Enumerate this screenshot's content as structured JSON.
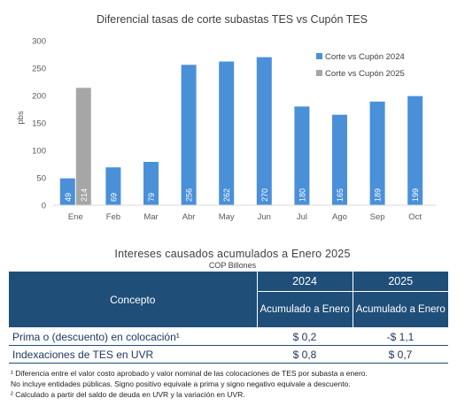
{
  "chart_data": {
    "type": "bar",
    "title": "Diferencial tasas de corte subastas TES vs Cupón TES",
    "ylabel": "pbs",
    "xlabel": "",
    "ylim": [
      0,
      300
    ],
    "yticks": [
      0,
      50,
      100,
      150,
      200,
      250,
      300
    ],
    "categories": [
      "Ene",
      "Feb",
      "Mar",
      "Abr",
      "May",
      "Jun",
      "Jul",
      "Ago",
      "Sep",
      "Oct"
    ],
    "series": [
      {
        "name": "Corte vs Cupón 2024",
        "color": "#4a90d9",
        "values": [
          49,
          69,
          79,
          256,
          262,
          270,
          180,
          165,
          189,
          199
        ]
      },
      {
        "name": "Corte vs Cupón 2025",
        "color": "#a6a6a6",
        "values": [
          214,
          null,
          null,
          null,
          null,
          null,
          null,
          null,
          null,
          null
        ]
      }
    ],
    "data_labels": true,
    "legend": "top-right",
    "grid": false
  },
  "table": {
    "title": "Intereses causados acumulados a Enero 2025",
    "subtitle": "COP Billones",
    "concept_header": "Concepto",
    "years": [
      "2024",
      "2025"
    ],
    "sub_header": "Acumulado a Enero",
    "rows": [
      {
        "label": "Prima o (descuento) en colocación¹",
        "v2024": "$ 0,2",
        "v2025": "-$ 1,1"
      },
      {
        "label": "Indexaciones de TES en UVR",
        "v2024": "$ 0,8",
        "v2025": "$ 0,7"
      }
    ]
  },
  "notes": [
    "¹ Diferencia entre el valor costo aprobado y valor nominal de las colocaciones de TES por subasta a enero.",
    "No incluye entidades públicas. Signo positivo equivale a prima y signo negativo equivale a descuento.",
    "² Calculado a partir del saldo de deuda en UVR y la variación en UVR."
  ]
}
